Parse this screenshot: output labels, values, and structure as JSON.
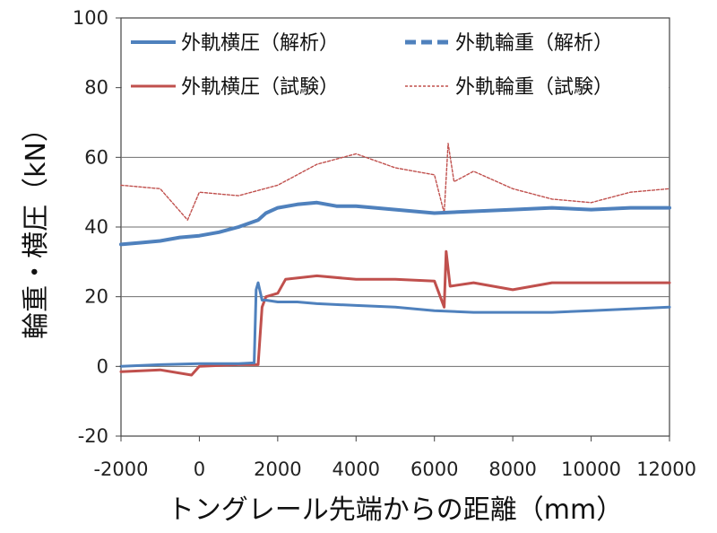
{
  "chart_data": {
    "type": "line",
    "xlabel": "トングレール先端からの距離（mm）",
    "ylabel": "輪重・横圧（kN）",
    "xlim": [
      -2000,
      12000
    ],
    "ylim": [
      -20,
      100
    ],
    "xticks": [
      "-2000",
      "0",
      "2000",
      "4000",
      "6000",
      "8000",
      "10000",
      "12000"
    ],
    "yticks": [
      "-20",
      "0",
      "20",
      "40",
      "60",
      "80",
      "100"
    ],
    "xtick_values": [
      -2000,
      0,
      2000,
      4000,
      6000,
      8000,
      10000,
      12000
    ],
    "ytick_values": [
      -20,
      0,
      20,
      40,
      60,
      80,
      100
    ],
    "grid": "horizontal",
    "legend_position": "top",
    "series": [
      {
        "name": "外軌横圧（解析）",
        "color": "#4f81bd",
        "style": "solid",
        "x": [
          -2000,
          -1000,
          0,
          1000,
          1400,
          1450,
          1500,
          1600,
          1700,
          2000,
          2500,
          3000,
          4000,
          5000,
          6000,
          7000,
          8000,
          9000,
          10000,
          11000,
          12000
        ],
        "y": [
          0,
          0.5,
          0.8,
          0.8,
          1,
          22,
          24,
          19,
          19,
          18.5,
          18.5,
          18,
          17.5,
          17,
          16,
          15.5,
          15.5,
          15.5,
          16,
          16.5,
          17
        ]
      },
      {
        "name": "外軌輪重（解析）",
        "color": "#4f81bd",
        "style": "dashed",
        "x": [
          -2000,
          -1500,
          -1000,
          -500,
          0,
          500,
          1000,
          1500,
          1700,
          2000,
          2500,
          3000,
          3500,
          4000,
          5000,
          6000,
          7000,
          8000,
          9000,
          10000,
          11000,
          12000
        ],
        "y": [
          35,
          35.5,
          36,
          37,
          37.5,
          38.5,
          40,
          42,
          44,
          45.5,
          46.5,
          47,
          46,
          46,
          45,
          44,
          44.5,
          45,
          45.5,
          45,
          45.5,
          45.5
        ]
      },
      {
        "name": "外軌横圧（試験）",
        "color": "#c0504d",
        "style": "solid",
        "x": [
          -2000,
          -1000,
          -200,
          0,
          1000,
          1500,
          1600,
          1700,
          2000,
          2200,
          3000,
          4000,
          5000,
          6000,
          6250,
          6300,
          6400,
          7000,
          8000,
          9000,
          10000,
          11000,
          12000
        ],
        "y": [
          -1.5,
          -1,
          -2.5,
          0,
          0.5,
          0.5,
          17,
          20,
          21,
          25,
          26,
          25,
          25,
          24.5,
          17,
          33,
          23,
          24,
          22,
          24,
          24,
          24,
          24
        ]
      },
      {
        "name": "外軌輪重（試験）",
        "color": "#c0504d",
        "style": "dotted",
        "x": [
          -2000,
          -1000,
          -300,
          0,
          1000,
          2000,
          3000,
          4000,
          4500,
          5000,
          6000,
          6250,
          6350,
          6500,
          7000,
          8000,
          9000,
          10000,
          11000,
          12000
        ],
        "y": [
          52,
          51,
          42,
          50,
          49,
          52,
          58,
          61,
          59,
          57,
          55,
          44,
          64,
          53,
          56,
          51,
          48,
          47,
          50,
          51
        ]
      }
    ]
  }
}
